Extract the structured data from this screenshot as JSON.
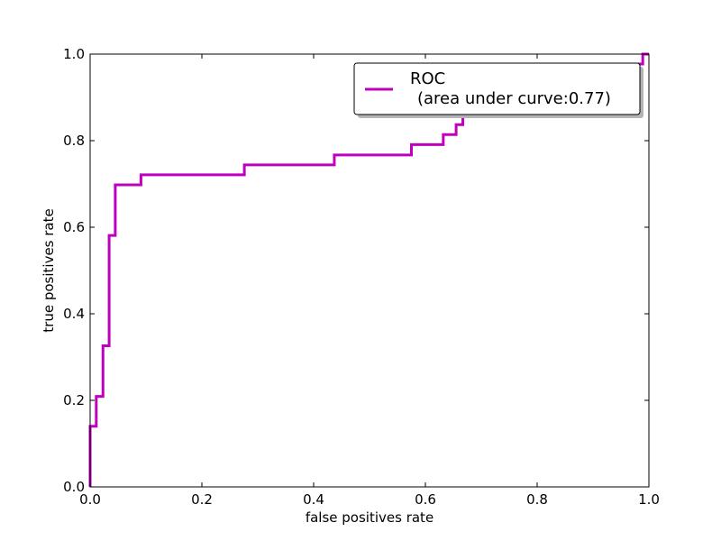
{
  "chart_data": {
    "type": "line",
    "title": "",
    "xlabel": "false positives rate",
    "ylabel": "true positives rate",
    "xlim": [
      0,
      1
    ],
    "ylim": [
      0,
      1
    ],
    "x_ticks": [
      "0.0",
      "0.2",
      "0.4",
      "0.6",
      "0.8",
      "1.0"
    ],
    "y_ticks": [
      "0.0",
      "0.2",
      "0.4",
      "0.6",
      "0.8",
      "1.0"
    ],
    "grid": false,
    "legend_position": "top-right",
    "series": [
      {
        "name": "ROC\n  (area under curve:0.77)",
        "label_line1": "ROC",
        "label_line2": "(area under curve:0.77)",
        "color": "#bf00bf",
        "step": "post",
        "points": [
          [
            0.0,
            0.0
          ],
          [
            0.0,
            0.14
          ],
          [
            0.011,
            0.14
          ],
          [
            0.011,
            0.209
          ],
          [
            0.023,
            0.209
          ],
          [
            0.023,
            0.326
          ],
          [
            0.034,
            0.326
          ],
          [
            0.034,
            0.581
          ],
          [
            0.045,
            0.581
          ],
          [
            0.045,
            0.698
          ],
          [
            0.091,
            0.698
          ],
          [
            0.091,
            0.721
          ],
          [
            0.276,
            0.721
          ],
          [
            0.276,
            0.744
          ],
          [
            0.437,
            0.744
          ],
          [
            0.437,
            0.767
          ],
          [
            0.575,
            0.767
          ],
          [
            0.575,
            0.791
          ],
          [
            0.632,
            0.791
          ],
          [
            0.632,
            0.814
          ],
          [
            0.655,
            0.814
          ],
          [
            0.655,
            0.837
          ],
          [
            0.667,
            0.837
          ],
          [
            0.667,
            0.86
          ],
          [
            0.69,
            0.86
          ],
          [
            0.69,
            0.884
          ],
          [
            0.77,
            0.884
          ],
          [
            0.77,
            0.907
          ],
          [
            0.85,
            0.907
          ],
          [
            0.85,
            0.93
          ],
          [
            0.92,
            0.93
          ],
          [
            0.92,
            0.953
          ],
          [
            0.966,
            0.953
          ],
          [
            0.966,
            0.977
          ],
          [
            0.989,
            0.977
          ],
          [
            0.989,
            1.0
          ],
          [
            1.0,
            1.0
          ]
        ]
      }
    ]
  }
}
